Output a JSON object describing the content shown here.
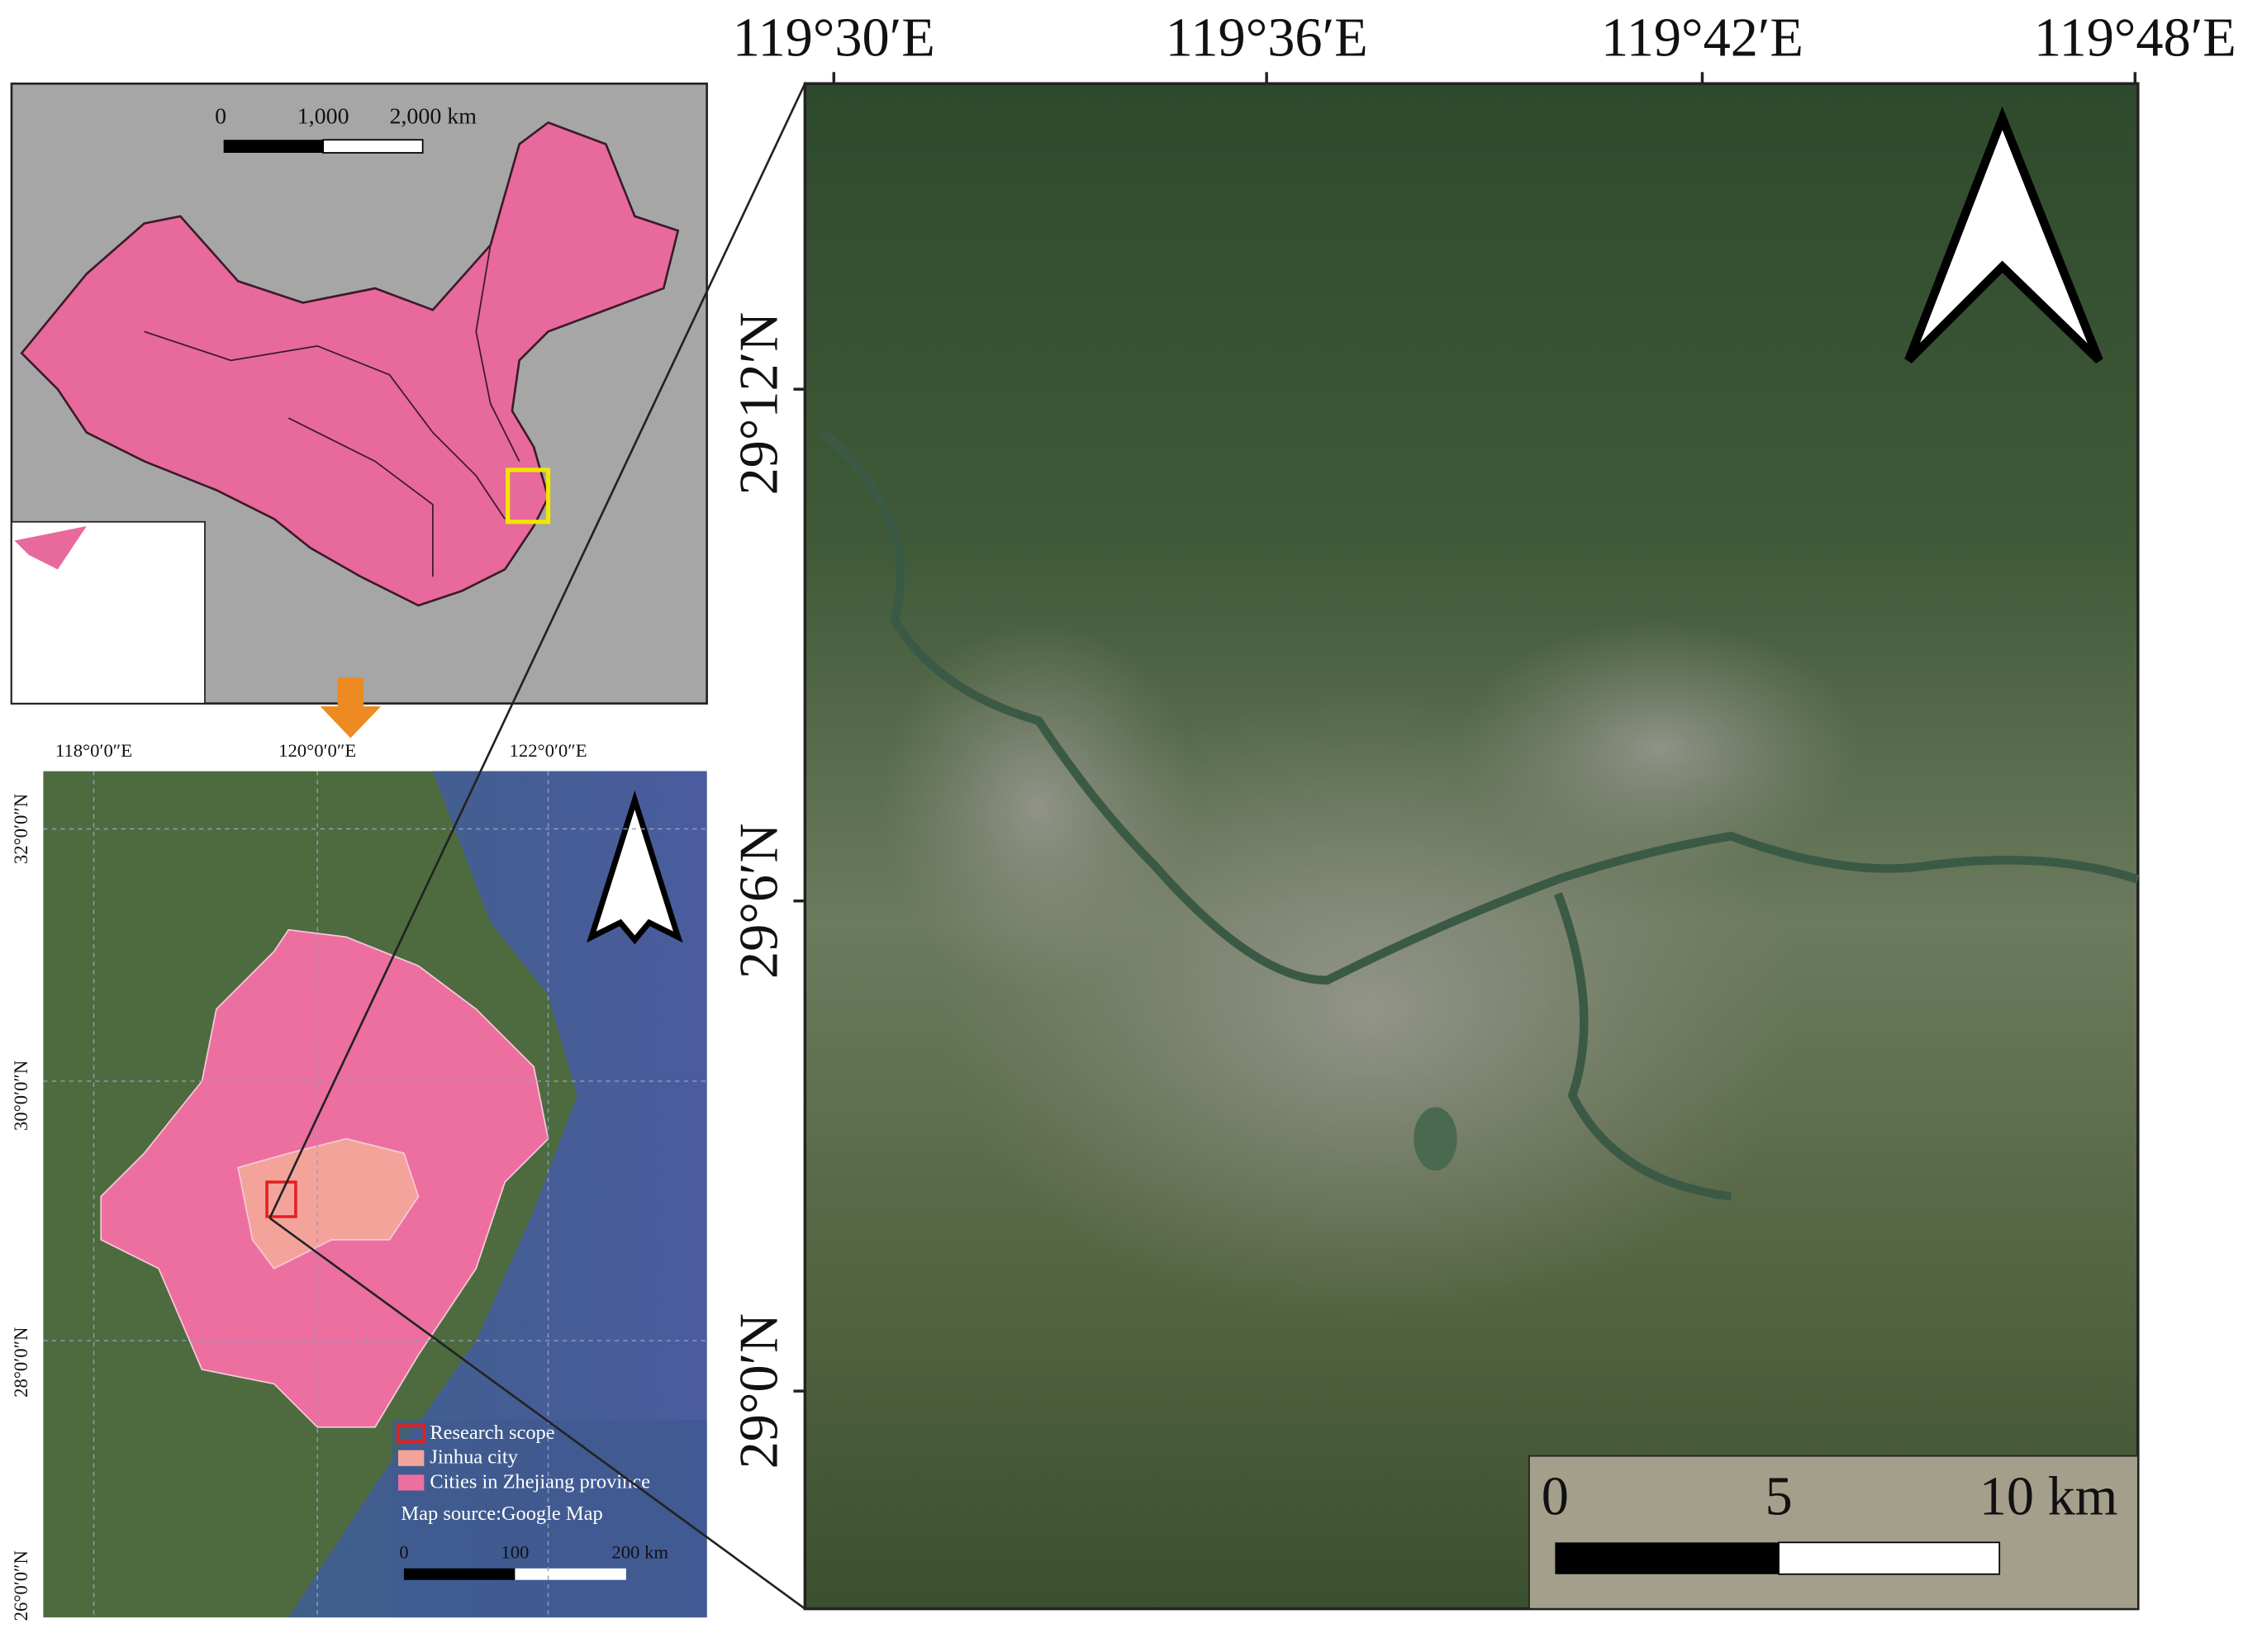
{
  "main_map": {
    "longitude_labels": [
      "119°30′E",
      "119°36′E",
      "119°42′E",
      "119°48′E"
    ],
    "latitude_labels": [
      "29°12′N",
      "29°6′N",
      "29°0′N"
    ],
    "scale_bar": {
      "labels": [
        "0",
        "5",
        "10 km"
      ]
    }
  },
  "china_map": {
    "scale_bar": {
      "labels": [
        "0",
        "1,000",
        "2,000 km"
      ]
    }
  },
  "zhejiang_map": {
    "longitude_labels": [
      "118°0′0″E",
      "120°0′0″E",
      "122°0′0″E"
    ],
    "latitude_labels": [
      "32°0′0″N",
      "30°0′0″N",
      "28°0′0″N",
      "26°0′0″N"
    ],
    "legend": [
      "Research scope",
      "Jinhua city",
      "Cities in Zhejiang province"
    ],
    "source": "Map source:Google Map",
    "scale_bar": {
      "labels": [
        "0",
        "100",
        "200 km"
      ]
    }
  }
}
